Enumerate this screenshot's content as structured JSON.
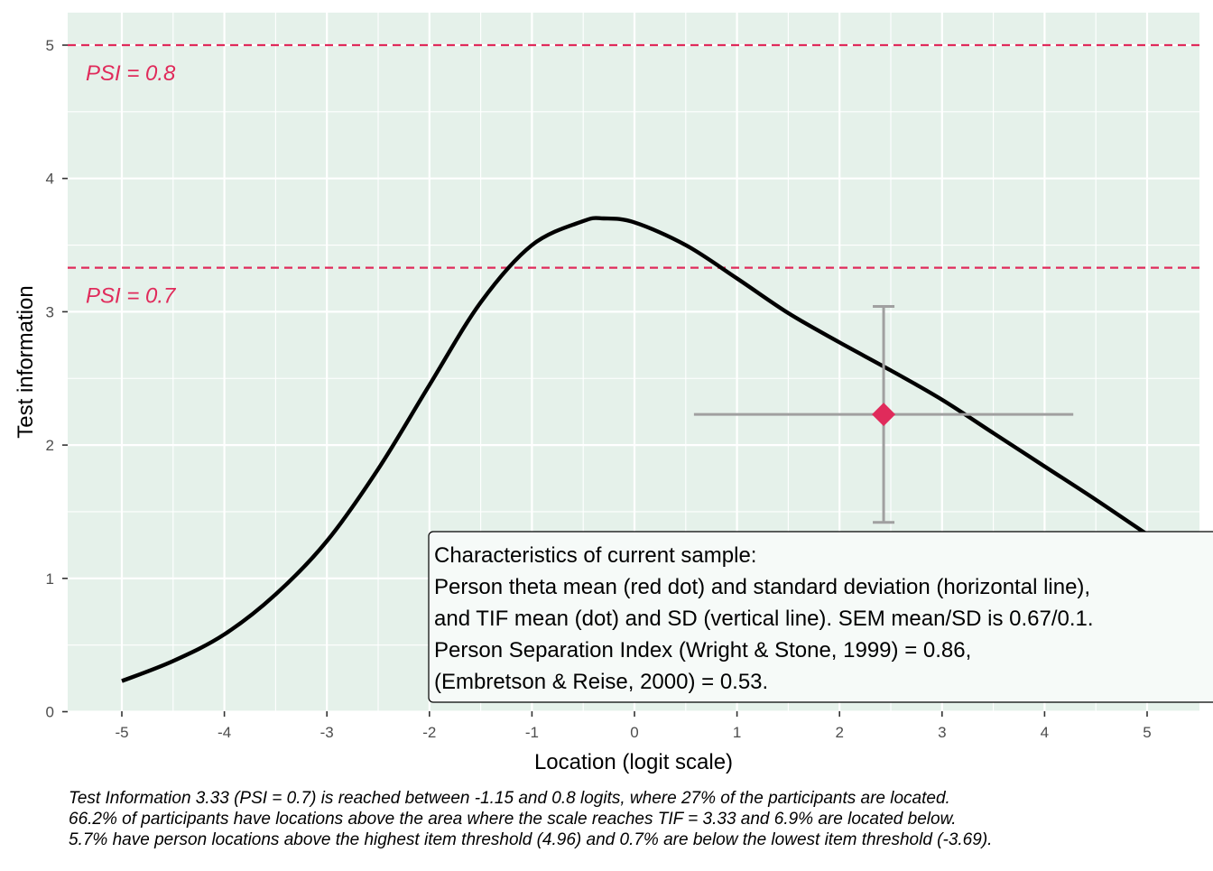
{
  "chart_data": {
    "type": "line",
    "xlabel": "Location (logit scale)",
    "ylabel": "Test information",
    "xlim": [
      -5.5,
      5.5
    ],
    "ylim": [
      -0.05,
      5.25
    ],
    "x_ticks": [
      -5,
      -4,
      -3,
      -2,
      -1,
      0,
      1,
      2,
      3,
      4,
      5
    ],
    "y_ticks": [
      0,
      1,
      2,
      3,
      4,
      5
    ],
    "x_tick_labels": [
      "-5",
      "-4",
      "-3",
      "-2",
      "-1",
      "0",
      "1",
      "2",
      "3",
      "4",
      "5"
    ],
    "y_tick_labels": [
      "0",
      "1",
      "2",
      "3",
      "4",
      "5"
    ],
    "grid": true,
    "colors": {
      "panel_background": "#e5f1ea",
      "grid": "#ffffff",
      "curve": "#000000",
      "reference": "#e02b5b",
      "errorbar": "#a0a0a0",
      "point": "#e02b5b",
      "box_fill": "#f6faf8",
      "box_border": "#000000"
    },
    "series": [
      {
        "x": [
          -5,
          -4.5,
          -4,
          -3.5,
          -3,
          -2.5,
          -2,
          -1.5,
          -1,
          -0.5,
          -0.3,
          0,
          0.5,
          1,
          1.5,
          2,
          2.5,
          3,
          3.5,
          4,
          4.5,
          5
        ],
        "y": [
          0.23,
          0.38,
          0.58,
          0.88,
          1.28,
          1.82,
          2.45,
          3.07,
          3.5,
          3.68,
          3.7,
          3.67,
          3.5,
          3.25,
          2.99,
          2.77,
          2.56,
          2.34,
          2.09,
          1.84,
          1.59,
          1.33
        ]
      }
    ],
    "reference_lines": [
      {
        "y": 5.0,
        "label": "PSI = 0.8"
      },
      {
        "y": 3.33,
        "label": "PSI = 0.7"
      }
    ],
    "sample_point": {
      "x": 2.43,
      "y": 2.23,
      "x_min": 0.58,
      "x_max": 4.28,
      "y_min": 1.42,
      "y_max": 3.04
    },
    "annotation_box": {
      "lines": [
        "Characteristics of current sample:",
        "Person theta mean (red dot) and standard deviation (horizontal line),",
        "and TIF mean (dot) and SD (vertical line). SEM mean/SD is 0.67/0.1.",
        "Person Separation Index (Wright & Stone, 1999) = 0.86,",
        "(Embretson & Reise, 2000) = 0.53."
      ]
    },
    "caption": [
      "Test Information 3.33 (PSI = 0.7) is reached between -1.15 and 0.8 logits, where 27% of the participants are located.",
      "66.2% of participants have locations above the area where the scale reaches TIF = 3.33 and 6.9% are located below.",
      "5.7% have person locations above the highest item threshold (4.96) and 0.7% are below the lowest item threshold (-3.69)."
    ]
  }
}
